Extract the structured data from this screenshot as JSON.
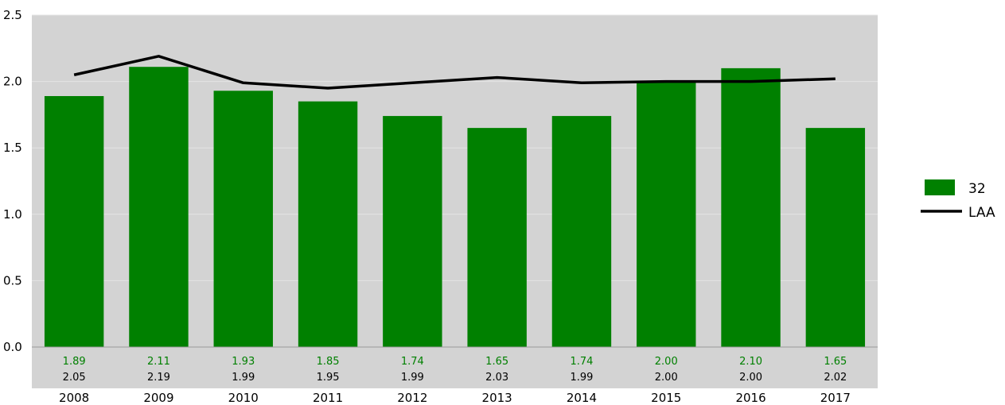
{
  "chart_data": {
    "type": "bar",
    "categories": [
      "2008",
      "2009",
      "2010",
      "2011",
      "2012",
      "2013",
      "2014",
      "2015",
      "2016",
      "2017"
    ],
    "series": [
      {
        "name": "32",
        "kind": "bar",
        "color": "#008000",
        "values": [
          1.89,
          2.11,
          1.93,
          1.85,
          1.74,
          1.65,
          1.74,
          2.0,
          2.1,
          1.65
        ],
        "labels": [
          "1.89",
          "2.11",
          "1.93",
          "1.85",
          "1.74",
          "1.65",
          "1.74",
          "2.00",
          "2.10",
          "1.65"
        ]
      },
      {
        "name": "LAA",
        "kind": "line",
        "color": "#000000",
        "values": [
          2.05,
          2.19,
          1.99,
          1.95,
          1.99,
          2.03,
          1.99,
          2.0,
          2.0,
          2.02
        ],
        "labels": [
          "2.05",
          "2.19",
          "1.99",
          "1.95",
          "1.99",
          "2.03",
          "1.99",
          "2.00",
          "2.00",
          "2.02"
        ]
      }
    ],
    "yticks": [
      "0.0",
      "0.5",
      "1.0",
      "1.5",
      "2.0",
      "2.5"
    ],
    "ylim": [
      0,
      2.5
    ],
    "grid": true,
    "plot_background": "#d3d3d3",
    "legend_position": "right"
  }
}
